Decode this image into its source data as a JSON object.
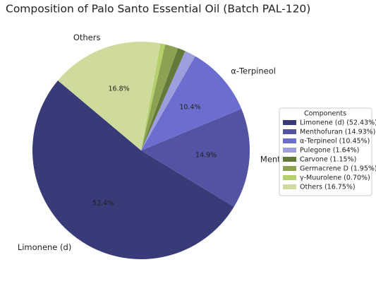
{
  "chart_data": {
    "type": "pie",
    "title": "Composition of Palo Santo Essential Oil (Batch PAL-120)",
    "categories": [
      "Limonene (d)",
      "Menthofuran",
      "α-Terpineol",
      "Pulegone",
      "Carvone",
      "Germacrene D",
      "γ-Muurolene",
      "Others"
    ],
    "values": [
      52.43,
      14.93,
      10.45,
      1.64,
      1.15,
      1.95,
      0.7,
      16.75
    ],
    "value_labels": [
      "52.4%",
      "14.9%",
      "10.4%",
      null,
      null,
      null,
      null,
      "16.8%"
    ],
    "colors": [
      "#393b79",
      "#5254a3",
      "#6b6ecf",
      "#9c9ede",
      "#637939",
      "#8ca252",
      "#b5cf6b",
      "#cedb9c"
    ],
    "start_angle": 140,
    "legend_title": "Components",
    "legend_labels": [
      "Limonene (d) (52.43%)",
      "Menthofuran (14.93%)",
      "α-Terpineol (10.45%)",
      "Pulegone (1.64%)",
      "Carvone (1.15%)",
      "Germacrene D (1.95%)",
      "γ-Muurolene (0.70%)",
      "Others (16.75%)"
    ],
    "legend_position": "right"
  }
}
